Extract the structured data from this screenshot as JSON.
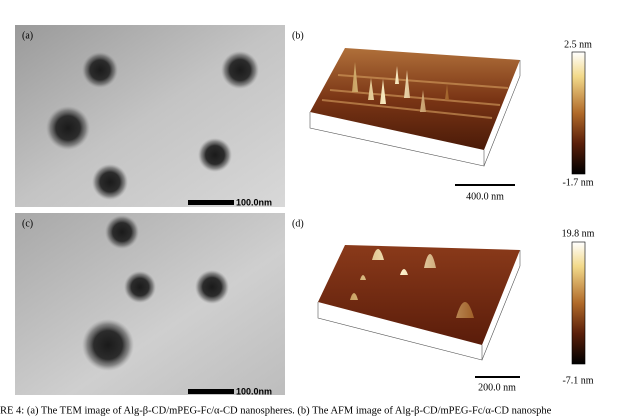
{
  "panels": [
    {
      "label": "(a)",
      "scale_bar": "100.0nm"
    },
    {
      "label": "(b)",
      "scale_bar": "400.0 nm",
      "colorbar_max": "2.5 nm",
      "colorbar_min": "-1.7 nm"
    },
    {
      "label": "(c)",
      "scale_bar": "100.0nm"
    },
    {
      "label": "(d)",
      "scale_bar": "200.0 nm",
      "colorbar_max": "19.8 nm",
      "colorbar_min": "-7.1 nm"
    }
  ],
  "caption": "RE 4: (a) The TEM image of Alg-β-CD/mPEG-Fc/α-CD nanospheres. (b) The AFM image of Alg-β-CD/mPEG-Fc/α-CD nanosphe"
}
